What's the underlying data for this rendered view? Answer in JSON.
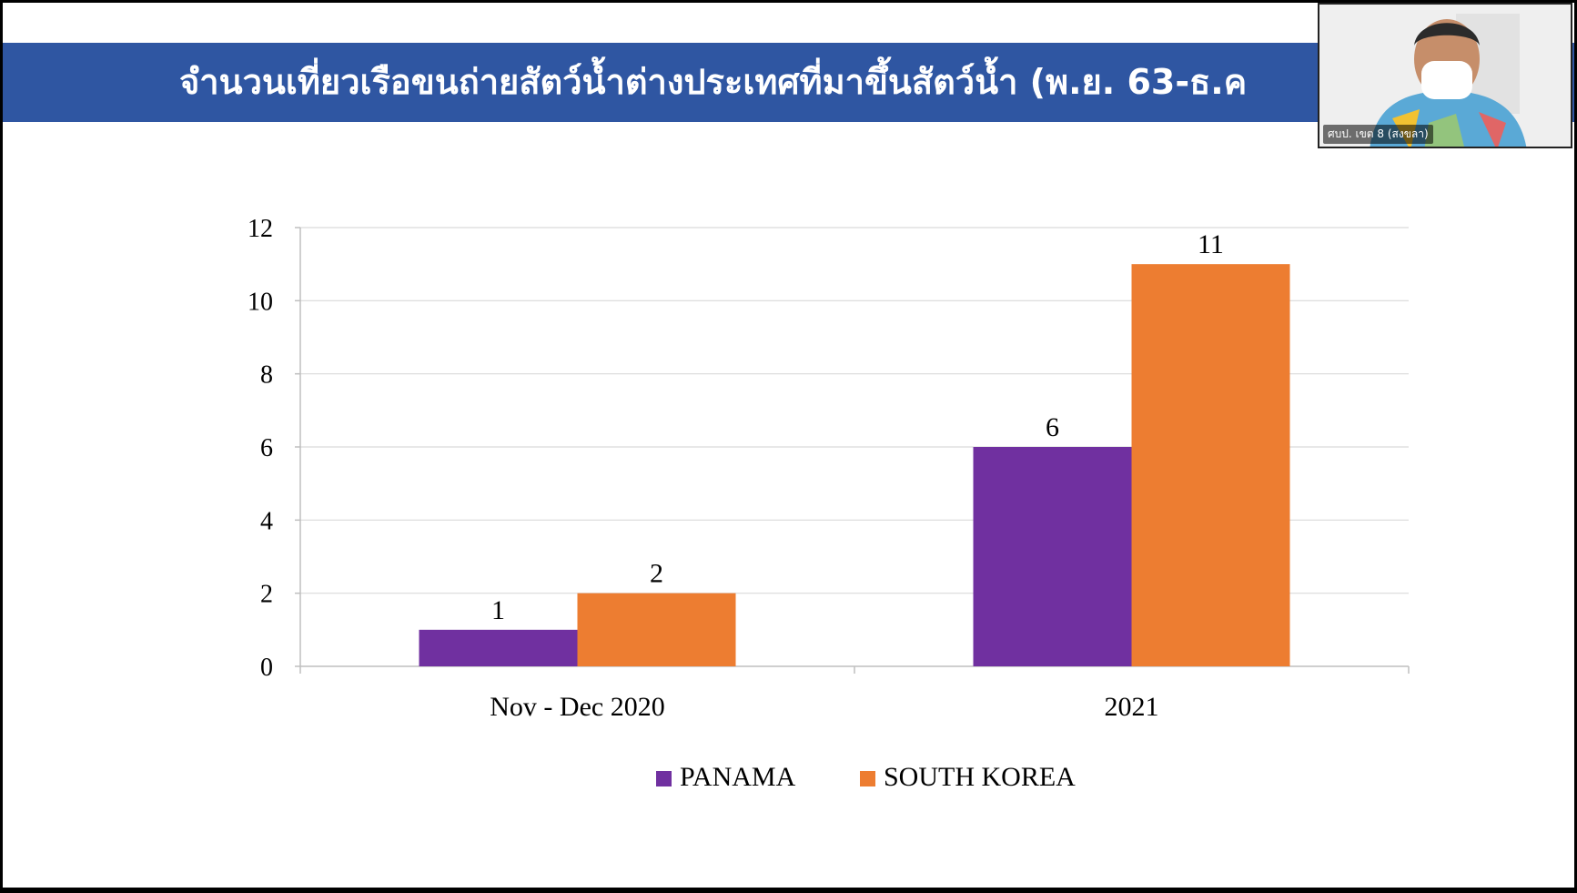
{
  "slide": {
    "title": "จำนวนเที่ยวเรือขนถ่ายสัตว์น้ำต่างประเทศที่มาขึ้นสัตว์น้ำ (พ.ย. 63-ธ.ค"
  },
  "webcam": {
    "label": "ศบป. เขต 8 (สงขลา)"
  },
  "colors": {
    "title_bar": "#2f56a2",
    "panama": "#7030a0",
    "south_korea": "#ed7d31",
    "gridline": "#d9d9d9",
    "axis": "#bfbfbf"
  },
  "chart_data": {
    "type": "bar",
    "categories": [
      "Nov - Dec 2020",
      "2021"
    ],
    "series": [
      {
        "name": "PANAMA",
        "values": [
          1,
          6
        ],
        "color": "#7030a0"
      },
      {
        "name": "SOUTH KOREA",
        "values": [
          2,
          11
        ],
        "color": "#ed7d31"
      }
    ],
    "ylim": [
      0,
      12
    ],
    "yticks": [
      "0",
      "2",
      "4",
      "6",
      "8",
      "10",
      "12"
    ],
    "data_labels": true,
    "grid": true,
    "legend": "bottom-center"
  }
}
